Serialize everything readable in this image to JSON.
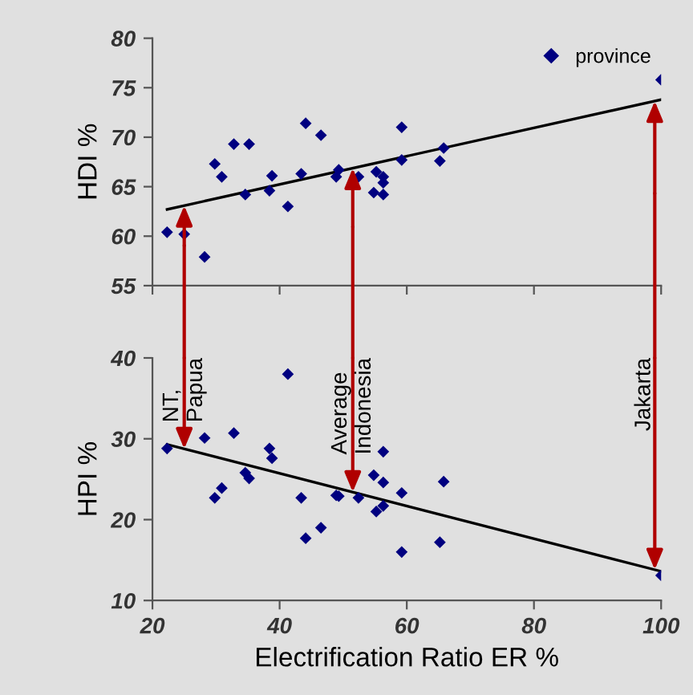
{
  "chart_data": [
    {
      "type": "scatter",
      "ylabel": "HDI %",
      "xlim": [
        20,
        100
      ],
      "xticks": [
        20,
        40,
        60,
        80,
        100
      ],
      "ylim": [
        55,
        80
      ],
      "yticks": [
        55,
        60,
        65,
        70,
        75,
        80
      ],
      "tick_labels": "y",
      "marker": "diamond",
      "legend": "top right",
      "grid": false,
      "series": [
        {
          "name": "province",
          "color": "#000080",
          "x": [
            22.3,
            25.0,
            28.2,
            29.8,
            30.9,
            32.8,
            34.6,
            35.2,
            38.4,
            38.8,
            41.3,
            43.4,
            44.1,
            46.5,
            48.9,
            49.3,
            52.4,
            54.8,
            55.2,
            56.3,
            56.3,
            56.3,
            59.2,
            59.2,
            65.2,
            65.8,
            100
          ],
          "values": [
            60.4,
            60.2,
            57.9,
            67.3,
            66.0,
            69.3,
            64.2,
            69.3,
            64.6,
            66.1,
            63.0,
            66.3,
            71.4,
            70.2,
            66.0,
            66.7,
            66.0,
            64.4,
            66.5,
            66.0,
            65.4,
            64.2,
            71.0,
            67.7,
            67.6,
            68.9,
            75.8
          ]
        },
        {
          "type": "line",
          "marker": "none",
          "color": "#000000",
          "x": [
            22.3,
            100
          ],
          "values": [
            62.7,
            73.8
          ]
        }
      ]
    },
    {
      "type": "scatter",
      "ylabel": "HPI %",
      "xlabel": "Electrification Ratio ER %",
      "xlim": [
        20,
        100
      ],
      "xticks": [
        20,
        40,
        60,
        80,
        100
      ],
      "ylim": [
        10,
        40
      ],
      "yticks": [
        10,
        20,
        30,
        40
      ],
      "marker": "diamond",
      "grid": false,
      "annotations": [
        {
          "text": "NT,\nPapua",
          "x": 25.0,
          "y": 28.75
        },
        {
          "text": "Average\nIndonesia",
          "x": 51.5,
          "y": 23.4
        },
        {
          "text": "Jakarta",
          "x": 99.0,
          "y": 13.8
        }
      ],
      "series": [
        {
          "color": "#000080",
          "x": [
            22.3,
            25.0,
            28.2,
            29.8,
            30.9,
            32.8,
            34.6,
            35.2,
            38.4,
            38.8,
            41.3,
            43.4,
            44.1,
            46.5,
            48.9,
            49.3,
            52.4,
            54.8,
            55.2,
            56.3,
            56.3,
            56.3,
            59.2,
            59.2,
            65.2,
            65.8,
            100
          ],
          "values": [
            28.8,
            null,
            30.1,
            22.7,
            23.9,
            30.7,
            25.8,
            25.1,
            28.8,
            27.6,
            38.0,
            22.7,
            17.7,
            19.0,
            23.0,
            22.9,
            22.7,
            25.5,
            21.0,
            28.4,
            24.6,
            21.7,
            23.3,
            16.0,
            17.2,
            24.7,
            13.1
          ]
        },
        {
          "type": "line",
          "marker": "none",
          "color": "#000000",
          "x": [
            22.3,
            100
          ],
          "values": [
            29.3,
            13.6
          ]
        }
      ]
    }
  ]
}
